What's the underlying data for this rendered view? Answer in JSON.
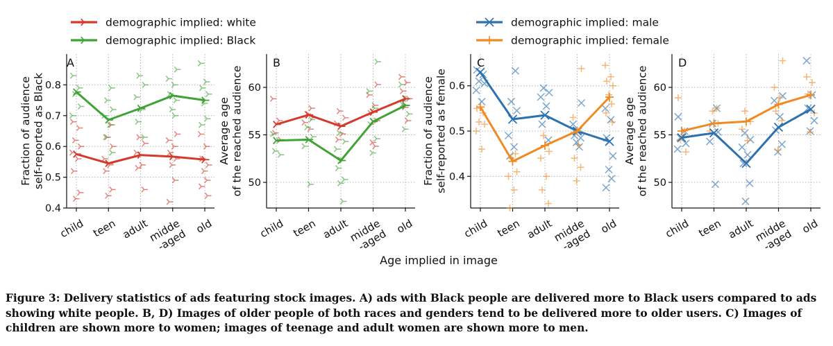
{
  "legends": {
    "left": [
      {
        "label": "demographic implied: white",
        "color": "#d33a2c",
        "marker": "tri"
      },
      {
        "label": "demographic implied: Black",
        "color": "#3fa336",
        "marker": "tri"
      }
    ],
    "right": [
      {
        "label": "demographic implied: male",
        "color": "#2d72b0",
        "marker": "x"
      },
      {
        "label": "demographic implied: female",
        "color": "#f08a24",
        "marker": "plus"
      }
    ]
  },
  "shared_xlabel": "Age implied in image",
  "caption": "Figure 3: Delivery statistics of ads featuring stock images. A) ads with Black people are delivered more to Black users compared to ads showing white people. B, D) Images of older people of both races and genders tend to be delivered more to older users. C) Images of children are shown more to women; images of teenage and adult women are shown more to men.",
  "chart_data": [
    {
      "type": "line",
      "panel": "A",
      "ylabel": [
        "Fraction of audience",
        "self-reported as Black"
      ],
      "categories": [
        "child",
        "teen",
        "adult",
        "midde\n-aged",
        "old"
      ],
      "yticks": [
        0.4,
        0.5,
        0.6,
        0.7,
        0.8
      ],
      "ytick_labels": [
        "0.4",
        "0.5",
        "0.6",
        "0.7",
        "0.8"
      ],
      "ylim": [
        0.4,
        0.9
      ],
      "grid": true,
      "series": [
        {
          "name": "demographic implied: white",
          "color": "#d33a2c",
          "marker": "tri",
          "values": [
            0.575,
            0.545,
            0.572,
            0.567,
            0.557
          ],
          "scatter": [
            [
              0.68,
              0.66,
              0.62,
              0.6,
              0.58,
              0.56,
              0.52,
              0.45,
              0.43
            ],
            [
              0.67,
              0.63,
              0.6,
              0.56,
              0.54,
              0.52,
              0.46,
              0.44
            ],
            [
              0.63,
              0.61,
              0.58,
              0.54,
              0.53,
              0.46
            ],
            [
              0.64,
              0.62,
              0.6,
              0.58,
              0.56,
              0.54,
              0.49,
              0.42
            ],
            [
              0.64,
              0.6,
              0.56,
              0.54,
              0.52,
              0.49,
              0.47,
              0.44
            ]
          ]
        },
        {
          "name": "demographic implied: Black",
          "color": "#3fa336",
          "marker": "tri",
          "values": [
            0.777,
            0.686,
            0.724,
            0.765,
            0.75
          ],
          "scatter": [
            [
              0.83,
              0.79,
              0.77,
              0.73,
              0.7
            ],
            [
              0.79,
              0.75,
              0.72,
              0.7,
              0.67,
              0.63,
              0.58
            ],
            [
              0.83,
              0.8,
              0.76,
              0.72,
              0.68,
              0.63
            ],
            [
              0.85,
              0.82,
              0.8,
              0.77,
              0.75,
              0.72,
              0.7
            ],
            [
              0.87,
              0.81,
              0.79,
              0.77,
              0.74,
              0.69,
              0.67
            ]
          ]
        }
      ]
    },
    {
      "type": "line",
      "panel": "B",
      "ylabel": [
        "Average age",
        "of the reached audience"
      ],
      "categories": [
        "child",
        "teen",
        "adult",
        "midde\n-aged",
        "old"
      ],
      "yticks": [
        50,
        55,
        60
      ],
      "ytick_labels": [
        "50",
        "55",
        "60"
      ],
      "ylim": [
        47.3,
        63.5
      ],
      "grid": true,
      "series": [
        {
          "name": "demographic implied: white",
          "color": "#d33a2c",
          "marker": "tri",
          "values": [
            56.1,
            57.1,
            55.9,
            57.4,
            58.8
          ],
          "scatter": [
            [
              58.8,
              56.5,
              55.2,
              54.5
            ],
            [
              57.8,
              57.2,
              56.8,
              56.3,
              55.6
            ],
            [
              57.5,
              56.8,
              56.2,
              55.1,
              54.5
            ],
            [
              60.3,
              59.2,
              58.1,
              57.3,
              56.5,
              54.2,
              53.8
            ],
            [
              61.1,
              60.5,
              59.6,
              58.8,
              57.9,
              56.5
            ]
          ]
        },
        {
          "name": "demographic implied: Black",
          "color": "#3fa336",
          "marker": "tri",
          "values": [
            54.4,
            54.5,
            52.3,
            56.4,
            58.1
          ],
          "scatter": [
            [
              55.1,
              54.4,
              53.3,
              52.9
            ],
            [
              56.6,
              55.8,
              54.8,
              53.8,
              49.8
            ],
            [
              55.2,
              54.3,
              53.5,
              52.3,
              51.5,
              50.3,
              49.9,
              48
            ],
            [
              62.7,
              59.6,
              57.8,
              56.1,
              54.6,
              53.1
            ],
            [
              60.3,
              58.8,
              58.2,
              57.2,
              55.6
            ]
          ]
        }
      ]
    },
    {
      "type": "line",
      "panel": "C",
      "ylabel": [
        "Fraction of audience",
        "self-reported as female"
      ],
      "categories": [
        "child",
        "teen",
        "adult",
        "midde\n-aged",
        "old"
      ],
      "yticks": [
        0.4,
        0.5,
        0.6
      ],
      "ytick_labels": [
        "0.4",
        "0.5",
        "0.6"
      ],
      "ylim": [
        0.33,
        0.67
      ],
      "grid": true,
      "series": [
        {
          "name": "demographic implied: male",
          "color": "#2d72b0",
          "marker": "x",
          "values": [
            0.63,
            0.526,
            0.535,
            0.5,
            0.477
          ],
          "scatter": [
            [
              0.635,
              0.625,
              0.61,
              0.605,
              0.59,
              0.565
            ],
            [
              0.633,
              0.565,
              0.545,
              0.49,
              0.465,
              0.445
            ],
            [
              0.595,
              0.585,
              0.575,
              0.555,
              0.515,
              0.48
            ],
            [
              0.562,
              0.515,
              0.5,
              0.49,
              0.485,
              0.475,
              0.465
            ],
            [
              0.55,
              0.525,
              0.485,
              0.445,
              0.415,
              0.395,
              0.375
            ]
          ]
        },
        {
          "name": "demographic implied: female",
          "color": "#f08a24",
          "marker": "plus",
          "values": [
            0.553,
            0.433,
            0.468,
            0.5,
            0.575
          ],
          "scatter": [
            [
              0.55,
              0.54,
              0.52,
              0.515,
              0.5,
              0.46
            ],
            [
              0.45,
              0.44,
              0.41,
              0.4,
              0.37,
              0.33
            ],
            [
              0.49,
              0.455,
              0.44,
              0.4,
              0.37,
              0.34
            ],
            [
              0.638,
              0.53,
              0.47,
              0.44,
              0.42,
              0.39
            ],
            [
              0.645,
              0.62,
              0.61,
              0.6,
              0.58,
              0.56,
              0.54,
              0.52
            ]
          ]
        }
      ]
    },
    {
      "type": "line",
      "panel": "D",
      "ylabel": [
        "Average age",
        "of the reached audience"
      ],
      "categories": [
        "child",
        "teen",
        "adult",
        "midde\n-aged",
        "old"
      ],
      "yticks": [
        50,
        55,
        60
      ],
      "ytick_labels": [
        "50",
        "55",
        "60"
      ],
      "ylim": [
        47.3,
        63.5
      ],
      "grid": true,
      "series": [
        {
          "name": "demographic implied: male",
          "color": "#2d72b0",
          "marker": "x",
          "values": [
            54.7,
            55.2,
            52.0,
            55.8,
            57.7
          ],
          "scatter": [
            [
              56.9,
              55.4,
              54.7,
              54.1,
              53.5
            ],
            [
              57.8,
              56.2,
              55.3,
              54.3,
              49.8
            ],
            [
              55.2,
              54.5,
              53.7,
              52.9,
              52,
              49.9,
              48
            ],
            [
              59.1,
              58.6,
              56.9,
              55.5,
              54,
              53.2
            ],
            [
              62.8,
              59.2,
              57.8,
              56.5,
              55.4
            ]
          ]
        },
        {
          "name": "demographic implied: female",
          "color": "#f08a24",
          "marker": "plus",
          "values": [
            55.4,
            56.2,
            56.4,
            58.2,
            59.2
          ],
          "scatter": [
            [
              58.9,
              55.4,
              54.5,
              53.2
            ],
            [
              57.8,
              57.5,
              56.2,
              55.4
            ],
            [
              57.5,
              56.4,
              55.6,
              54.4
            ],
            [
              62.8,
              60,
              58.9,
              57.5,
              56.5,
              53.4
            ],
            [
              61.1,
              60.5,
              59.3,
              57.3,
              55.3
            ]
          ]
        }
      ]
    }
  ]
}
